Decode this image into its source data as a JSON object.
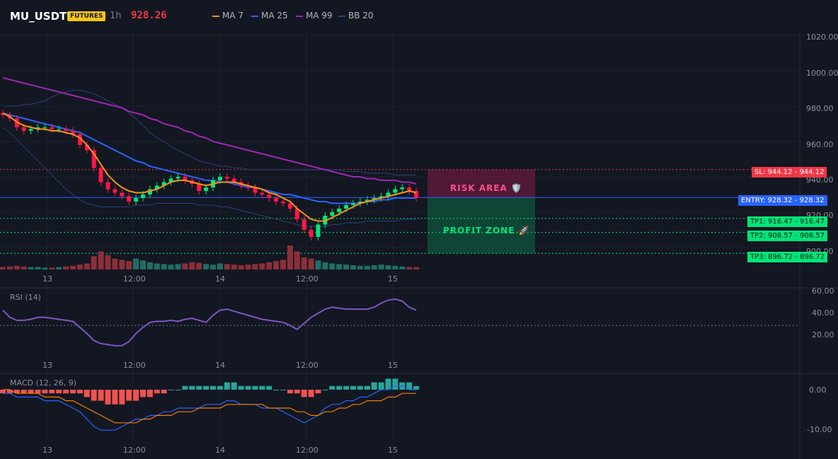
{
  "header": {
    "symbol": "MU_USDT",
    "badge": "FUTURES",
    "timeframe": "1h",
    "last_price": "928.26"
  },
  "legend": [
    {
      "label": "MA 7",
      "color": "#f7931a"
    },
    {
      "label": "MA 25",
      "color": "#2962ff"
    },
    {
      "label": "MA 99",
      "color": "#9c27b0"
    },
    {
      "label": "BB 20",
      "color": "#2a3f7a"
    }
  ],
  "colors": {
    "up": "#26a69a",
    "down": "#ef5350",
    "up_bright": "#00e676",
    "down_bright": "#ff1744",
    "ma7": "#f7931a",
    "ma25": "#2962ff",
    "ma99": "#9c27b0",
    "bb": "#2a3f7a",
    "rsi": "#7e57c2",
    "macd": "#2962ff",
    "signal": "#f57c00"
  },
  "chart_data": [
    {
      "type": "candlestick",
      "title": "MU_USDT",
      "x_ticks": [
        "13",
        "12:00",
        "14",
        "12:00",
        "15"
      ],
      "y_ticks": [
        "1020.00",
        "1000.00",
        "980.00",
        "960.00",
        "940.00",
        "920.00",
        "900.00"
      ],
      "ylim": [
        888,
        1022
      ],
      "closes": [
        975,
        973,
        968,
        966,
        967,
        968,
        968,
        967,
        967,
        966,
        964,
        958,
        955,
        945,
        937,
        933,
        931,
        929,
        926,
        928,
        930,
        933,
        935,
        937,
        939,
        940,
        938,
        936,
        932,
        934,
        938,
        940,
        939,
        937,
        935,
        934,
        931,
        930,
        928,
        926,
        925,
        922,
        916,
        910,
        906,
        913,
        918,
        920,
        922,
        924,
        925,
        926,
        927,
        928,
        929,
        931,
        933,
        934,
        932,
        928
      ],
      "volume": [
        4,
        5,
        6,
        5,
        4,
        4,
        3,
        3,
        4,
        5,
        6,
        8,
        10,
        22,
        30,
        24,
        18,
        16,
        14,
        18,
        15,
        12,
        10,
        9,
        8,
        9,
        10,
        12,
        11,
        9,
        8,
        10,
        9,
        8,
        7,
        8,
        9,
        10,
        12,
        14,
        16,
        40,
        30,
        20,
        18,
        15,
        12,
        10,
        9,
        8,
        7,
        6,
        6,
        7,
        8,
        7,
        6,
        5,
        4,
        4
      ],
      "ma7": [
        976,
        974,
        971,
        969,
        968,
        967,
        967,
        966,
        966,
        965,
        964,
        962,
        958,
        953,
        947,
        941,
        937,
        934,
        932,
        931,
        931,
        932,
        933,
        935,
        937,
        938,
        938,
        937,
        936,
        935,
        936,
        937,
        937,
        937,
        936,
        935,
        934,
        933,
        931,
        930,
        928,
        926,
        922,
        919,
        916,
        915,
        915,
        917,
        919,
        921,
        923,
        925,
        926,
        927,
        928,
        929,
        930,
        931,
        932,
        931
      ],
      "ma25": [
        976,
        975,
        974,
        973,
        972,
        971,
        970,
        969,
        968,
        967,
        966,
        965,
        963,
        961,
        959,
        957,
        955,
        953,
        951,
        949,
        948,
        946,
        945,
        944,
        943,
        942,
        941,
        940,
        939,
        938,
        938,
        937,
        937,
        936,
        935,
        934,
        934,
        933,
        932,
        931,
        930,
        930,
        929,
        928,
        927,
        926,
        926,
        925,
        925,
        925,
        925,
        925,
        926,
        926,
        927,
        927,
        928,
        928,
        928,
        928
      ],
      "ma99": [
        996,
        995,
        994,
        993,
        992,
        991,
        990,
        989,
        988,
        987,
        986,
        985,
        984,
        983,
        982,
        981,
        980,
        979,
        977,
        976,
        975,
        973,
        972,
        970,
        969,
        968,
        966,
        965,
        963,
        962,
        960,
        959,
        958,
        957,
        956,
        955,
        954,
        953,
        952,
        951,
        950,
        949,
        948,
        947,
        946,
        945,
        944,
        943,
        942,
        941,
        940,
        940,
        939,
        939,
        938,
        938,
        938,
        937,
        937,
        936
      ],
      "bb_upper": [
        980,
        980,
        980,
        981,
        981,
        982,
        983,
        985,
        987,
        988,
        989,
        989,
        988,
        987,
        985,
        983,
        981,
        979,
        976,
        973,
        969,
        965,
        962,
        960,
        957,
        955,
        953,
        951,
        949,
        948,
        947,
        946,
        946,
        945,
        945,
        944,
        944,
        944,
        944,
        944,
        944,
        944,
        944,
        944,
        944,
        944,
        944,
        944,
        944,
        943,
        943,
        943,
        942,
        942,
        942,
        942,
        941,
        941,
        941,
        941
      ],
      "bb_lower": [
        968,
        965,
        961,
        957,
        953,
        949,
        945,
        941,
        937,
        933,
        930,
        927,
        925,
        924,
        923,
        923,
        923,
        923,
        923,
        924,
        924,
        924,
        925,
        925,
        925,
        925,
        925,
        925,
        924,
        924,
        924,
        923,
        923,
        922,
        921,
        920,
        919,
        918,
        917,
        916,
        915,
        914,
        913,
        912,
        912,
        912,
        912,
        913,
        913,
        914,
        914,
        914,
        915,
        915,
        915,
        915,
        915,
        916,
        916,
        916
      ],
      "sl": "SL: 944.12",
      "sl_value": "944.12",
      "entry": "ENTRY: 928.32",
      "entry_value": "928.32",
      "tp1": "TP1: 916.47",
      "tp1_value": "916.47",
      "tp2": "TP2: 908.57",
      "tp2_value": "908.57",
      "tp3": "TP3: 896.72",
      "tp3_value": "896.72",
      "risk_label": "RISK AREA 🛡️",
      "profit_label": "PROFIT ZONE 🚀"
    },
    {
      "type": "line",
      "title": "RSI (14)",
      "y_ticks": [
        "60.00",
        "40.00",
        "20.00"
      ],
      "ylim": [
        0,
        65
      ],
      "values": [
        45,
        38,
        35,
        35,
        36,
        38,
        38,
        37,
        36,
        35,
        34,
        28,
        22,
        15,
        12,
        11,
        10,
        10,
        14,
        22,
        28,
        33,
        34,
        34,
        35,
        34,
        36,
        37,
        35,
        33,
        40,
        45,
        46,
        44,
        42,
        40,
        38,
        36,
        35,
        34,
        33,
        30,
        26,
        32,
        38,
        42,
        46,
        48,
        47,
        46,
        46,
        46,
        46,
        48,
        52,
        55,
        56,
        54,
        48,
        45
      ],
      "overbought_line": 30
    },
    {
      "type": "bar",
      "title": "MACD (12, 26, 9)",
      "y_ticks": [
        "0.00",
        "-10.00"
      ],
      "ylim": [
        -13,
        3
      ],
      "histogram": [
        -1,
        -1,
        -1,
        -1,
        -1,
        -1,
        -1,
        -1,
        -1,
        -1,
        -1,
        -1,
        -2,
        -3,
        -3,
        -4,
        -4,
        -4,
        -3,
        -3,
        -2,
        -2,
        -1,
        -1,
        0,
        0,
        1,
        1,
        1,
        1,
        1,
        1,
        2,
        2,
        1,
        1,
        1,
        1,
        1,
        0,
        0,
        -1,
        -1,
        -2,
        -2,
        -1,
        0,
        1,
        1,
        1,
        1,
        1,
        1,
        2,
        2,
        3,
        3,
        2,
        2,
        1
      ],
      "macd": [
        -1,
        -1,
        -2,
        -2,
        -2,
        -2,
        -3,
        -3,
        -3,
        -4,
        -5,
        -6,
        -8,
        -10,
        -11,
        -11,
        -11,
        -10,
        -9,
        -8,
        -8,
        -7,
        -7,
        -6,
        -6,
        -5,
        -5,
        -5,
        -5,
        -4,
        -4,
        -4,
        -3,
        -3,
        -4,
        -4,
        -4,
        -5,
        -5,
        -5,
        -6,
        -7,
        -8,
        -9,
        -8,
        -7,
        -5,
        -4,
        -4,
        -3,
        -3,
        -2,
        -2,
        -1,
        0,
        0,
        1,
        1,
        0,
        0
      ],
      "signal": [
        0,
        0,
        -1,
        -1,
        -1,
        -1,
        -2,
        -2,
        -2,
        -3,
        -3,
        -4,
        -5,
        -6,
        -7,
        -8,
        -9,
        -9,
        -9,
        -9,
        -8,
        -8,
        -7,
        -7,
        -7,
        -6,
        -6,
        -6,
        -5,
        -5,
        -5,
        -5,
        -4,
        -4,
        -4,
        -4,
        -4,
        -4,
        -5,
        -5,
        -5,
        -5,
        -6,
        -6,
        -7,
        -7,
        -6,
        -6,
        -5,
        -5,
        -4,
        -4,
        -3,
        -3,
        -3,
        -2,
        -2,
        -1,
        -1,
        -1
      ]
    }
  ]
}
